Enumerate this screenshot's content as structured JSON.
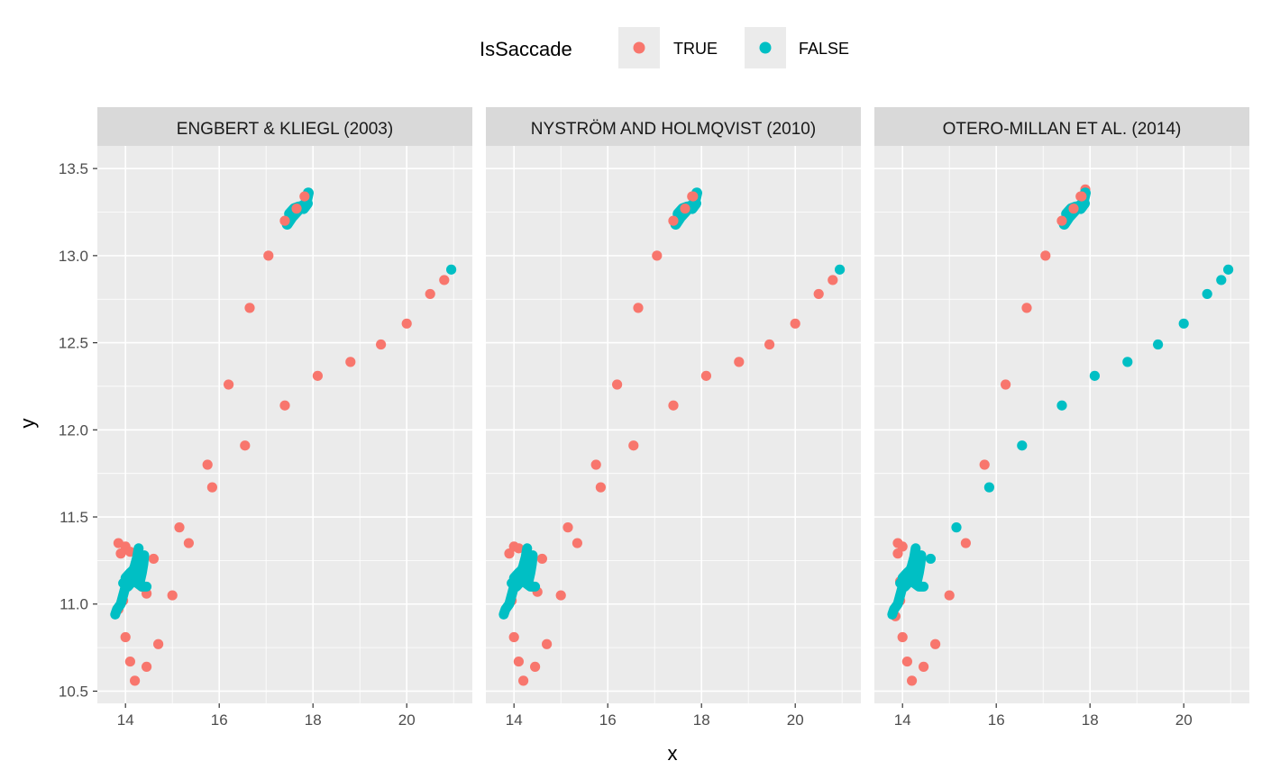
{
  "chart_data": {
    "type": "scatter",
    "xlabel": "x",
    "ylabel": "y",
    "xlim": [
      13.4,
      21.4
    ],
    "ylim": [
      10.43,
      13.63
    ],
    "x_ticks": [
      14,
      16,
      18,
      20
    ],
    "y_ticks": [
      10.5,
      11.0,
      11.5,
      12.0,
      12.5,
      13.0,
      13.5
    ],
    "y_tick_labels": [
      "10.5",
      "11.0",
      "11.5",
      "12.0",
      "12.5",
      "13.0",
      "13.5"
    ],
    "grid": true,
    "legend": {
      "title": "IsSaccade",
      "placement": "top",
      "entries": [
        {
          "label": "TRUE",
          "color": "#F8766D"
        },
        {
          "label": "FALSE",
          "color": "#00BFC4"
        }
      ]
    },
    "panels": [
      {
        "title": "ENGBERT & KLIEGL (2003)",
        "series": [
          {
            "name": "TRUE",
            "color": "#F8766D",
            "points": [
              [
                13.85,
                11.35
              ],
              [
                14.0,
                11.33
              ],
              [
                13.9,
                11.29
              ],
              [
                14.1,
                11.3
              ],
              [
                14.2,
                11.13
              ],
              [
                14.35,
                11.1
              ],
              [
                14.45,
                11.06
              ],
              [
                14.6,
                11.26
              ],
              [
                13.95,
                11.02
              ],
              [
                13.85,
                10.97
              ],
              [
                14.0,
                10.81
              ],
              [
                14.1,
                10.67
              ],
              [
                14.2,
                10.56
              ],
              [
                14.45,
                10.64
              ],
              [
                14.7,
                10.77
              ],
              [
                15.0,
                11.05
              ],
              [
                15.15,
                11.44
              ],
              [
                15.35,
                11.35
              ],
              [
                15.75,
                11.8
              ],
              [
                15.85,
                11.67
              ],
              [
                16.2,
                12.26
              ],
              [
                16.55,
                11.91
              ],
              [
                16.65,
                12.7
              ],
              [
                17.05,
                13.0
              ],
              [
                17.4,
                13.2
              ],
              [
                17.4,
                12.14
              ],
              [
                17.65,
                13.27
              ],
              [
                17.85,
                13.34
              ],
              [
                18.1,
                12.31
              ],
              [
                18.8,
                12.39
              ],
              [
                19.45,
                12.49
              ],
              [
                20.0,
                12.61
              ],
              [
                20.5,
                12.78
              ],
              [
                20.8,
                12.86
              ]
            ]
          },
          {
            "name": "FALSE",
            "color": "#00BFC4",
            "points": [
              [
                20.95,
                12.92
              ]
            ]
          }
        ]
      },
      {
        "title": "NYSTRÖM AND HOLMQVIST (2010)",
        "series": [
          {
            "name": "TRUE",
            "color": "#F8766D",
            "points": [
              [
                13.9,
                11.29
              ],
              [
                14.0,
                11.33
              ],
              [
                14.1,
                11.32
              ],
              [
                14.2,
                11.13
              ],
              [
                14.4,
                11.1
              ],
              [
                14.5,
                11.07
              ],
              [
                14.6,
                11.26
              ],
              [
                13.95,
                11.02
              ],
              [
                14.0,
                10.81
              ],
              [
                14.1,
                10.67
              ],
              [
                14.2,
                10.56
              ],
              [
                14.45,
                10.64
              ],
              [
                14.7,
                10.77
              ],
              [
                15.0,
                11.05
              ],
              [
                15.15,
                11.44
              ],
              [
                15.35,
                11.35
              ],
              [
                15.75,
                11.8
              ],
              [
                15.85,
                11.67
              ],
              [
                16.2,
                12.26
              ],
              [
                16.55,
                11.91
              ],
              [
                16.65,
                12.7
              ],
              [
                17.05,
                13.0
              ],
              [
                17.4,
                13.2
              ],
              [
                17.4,
                12.14
              ],
              [
                17.6,
                13.26
              ],
              [
                17.8,
                13.34
              ],
              [
                18.1,
                12.31
              ],
              [
                18.8,
                12.39
              ],
              [
                19.45,
                12.49
              ],
              [
                20.0,
                12.61
              ],
              [
                20.5,
                12.78
              ],
              [
                20.8,
                12.86
              ]
            ]
          },
          {
            "name": "FALSE",
            "color": "#00BFC4",
            "points": [
              [
                20.95,
                12.92
              ]
            ]
          }
        ]
      },
      {
        "title": "OTERO-MILLAN ET AL. (2014)",
        "series": [
          {
            "name": "TRUE",
            "color": "#F8766D",
            "points": [
              [
                13.9,
                11.35
              ],
              [
                14.0,
                11.33
              ],
              [
                13.9,
                11.29
              ],
              [
                13.95,
                11.13
              ],
              [
                13.95,
                11.02
              ],
              [
                13.85,
                10.93
              ],
              [
                14.0,
                10.81
              ],
              [
                14.1,
                10.67
              ],
              [
                14.2,
                10.56
              ],
              [
                14.45,
                10.64
              ],
              [
                14.7,
                10.77
              ],
              [
                15.0,
                11.05
              ],
              [
                15.35,
                11.35
              ],
              [
                15.75,
                11.8
              ],
              [
                16.2,
                12.26
              ],
              [
                16.65,
                12.7
              ],
              [
                17.05,
                13.0
              ],
              [
                17.4,
                13.2
              ],
              [
                17.6,
                13.26
              ],
              [
                17.8,
                13.34
              ],
              [
                17.9,
                13.38
              ]
            ]
          },
          {
            "name": "FALSE",
            "color": "#00BFC4",
            "points": [
              [
                15.15,
                11.44
              ],
              [
                15.85,
                11.67
              ],
              [
                16.55,
                11.91
              ],
              [
                17.4,
                12.14
              ],
              [
                18.1,
                12.31
              ],
              [
                18.8,
                12.39
              ],
              [
                19.45,
                12.49
              ],
              [
                20.0,
                12.61
              ],
              [
                20.5,
                12.78
              ],
              [
                20.8,
                12.86
              ],
              [
                20.95,
                12.92
              ],
              [
                14.6,
                11.26
              ]
            ]
          }
        ]
      }
    ]
  }
}
